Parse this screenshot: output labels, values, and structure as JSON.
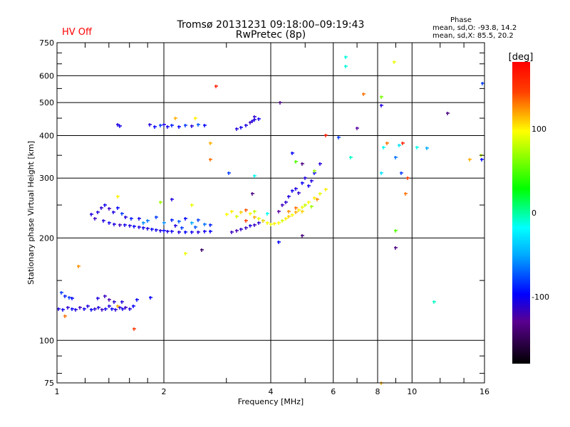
{
  "header": {
    "title": "Tromsø 20131231 09:18:00–09:19:43",
    "subtitle": "RwPretec (8p)",
    "hv_status": "HV Off",
    "phase_title": "Phase",
    "phase_o": "mean, sd,O: -93.8, 14.2",
    "phase_x": "mean, sd,X:  85.5, 20.2"
  },
  "colors": {
    "hv_status": "#ff0000",
    "grid": "#000000"
  },
  "chart_data": {
    "type": "scatter",
    "title": "Tromsø 20131231 09:18:00–09:19:43",
    "xlabel": "Frequency [MHz]",
    "ylabel": "Stationary phase Virtual Height [km]",
    "xscale": "log",
    "yscale": "log",
    "xlim": [
      1,
      16
    ],
    "ylim": [
      75,
      750
    ],
    "xticks": [
      1,
      2,
      4,
      6,
      8,
      10,
      16
    ],
    "yticks": [
      75,
      100,
      200,
      300,
      400,
      500,
      600,
      750
    ],
    "grid": true,
    "colorbar": {
      "label": "[deg]",
      "range": [
        -180,
        180
      ],
      "ticks": [
        100,
        0,
        -100
      ]
    },
    "point_format": [
      "freq_MHz",
      "height_km",
      "phase_deg"
    ],
    "points": [
      [
        1.01,
        124,
        -110
      ],
      [
        1.04,
        123,
        -105
      ],
      [
        1.07,
        125,
        -115
      ],
      [
        1.1,
        124,
        -100
      ],
      [
        1.13,
        123,
        -110
      ],
      [
        1.16,
        125,
        -120
      ],
      [
        1.19,
        124,
        -105
      ],
      [
        1.22,
        126,
        -110
      ],
      [
        1.25,
        123,
        -100
      ],
      [
        1.28,
        124,
        -115
      ],
      [
        1.31,
        125,
        -110
      ],
      [
        1.34,
        123,
        -120
      ],
      [
        1.37,
        124,
        -105
      ],
      [
        1.4,
        126,
        -110
      ],
      [
        1.43,
        124,
        -100
      ],
      [
        1.46,
        123,
        -115
      ],
      [
        1.5,
        125,
        -110
      ],
      [
        1.53,
        124,
        -105
      ],
      [
        1.56,
        125,
        -120
      ],
      [
        1.6,
        124,
        -110
      ],
      [
        1.64,
        126,
        -100
      ],
      [
        1.03,
        138,
        -90
      ],
      [
        1.05,
        135,
        -95
      ],
      [
        1.08,
        134,
        -90
      ],
      [
        1.1,
        133,
        -100
      ],
      [
        1.3,
        133,
        -110
      ],
      [
        1.36,
        135,
        -120
      ],
      [
        1.4,
        132,
        -125
      ],
      [
        1.45,
        130,
        -115
      ],
      [
        1.52,
        130,
        -110
      ],
      [
        1.68,
        132,
        -100
      ],
      [
        1.83,
        134,
        -100
      ],
      [
        1.15,
        165,
        130
      ],
      [
        1.65,
        108,
        160
      ],
      [
        1.48,
        126,
        120
      ],
      [
        1.05,
        118,
        140
      ],
      [
        1.35,
        225,
        -110
      ],
      [
        1.4,
        222,
        -105
      ],
      [
        1.45,
        220,
        -110
      ],
      [
        1.5,
        219,
        -120
      ],
      [
        1.55,
        218,
        -105
      ],
      [
        1.6,
        217,
        -110
      ],
      [
        1.65,
        216,
        -100
      ],
      [
        1.7,
        215,
        -110
      ],
      [
        1.75,
        214,
        -105
      ],
      [
        1.8,
        213,
        -110
      ],
      [
        1.85,
        212,
        -100
      ],
      [
        1.9,
        211,
        -105
      ],
      [
        1.95,
        210,
        -110
      ],
      [
        2.0,
        210,
        -100
      ],
      [
        2.05,
        209,
        -110
      ],
      [
        2.1,
        209,
        -105
      ],
      [
        2.2,
        208,
        -110
      ],
      [
        2.3,
        208,
        -100
      ],
      [
        2.4,
        208,
        -105
      ],
      [
        2.5,
        208,
        -110
      ],
      [
        2.6,
        209,
        -105
      ],
      [
        2.7,
        209,
        -100
      ],
      [
        1.3,
        238,
        -110
      ],
      [
        1.33,
        245,
        -115
      ],
      [
        1.36,
        250,
        -105
      ],
      [
        1.4,
        244,
        -120
      ],
      [
        1.44,
        238,
        -110
      ],
      [
        1.48,
        245,
        -100
      ],
      [
        1.52,
        236,
        -90
      ],
      [
        1.56,
        230,
        -110
      ],
      [
        1.62,
        228,
        -95
      ],
      [
        1.7,
        228,
        -105
      ],
      [
        1.8,
        225,
        -80
      ],
      [
        1.9,
        230,
        -90
      ],
      [
        2.0,
        222,
        -75
      ],
      [
        2.1,
        226,
        -95
      ],
      [
        2.2,
        224,
        -85
      ],
      [
        2.3,
        228,
        -100
      ],
      [
        2.4,
        222,
        -70
      ],
      [
        2.5,
        226,
        -90
      ],
      [
        2.6,
        220,
        -80
      ],
      [
        2.7,
        218,
        -95
      ],
      [
        1.25,
        235,
        -110
      ],
      [
        1.28,
        228,
        -120
      ],
      [
        2.25,
        214,
        -90
      ],
      [
        2.45,
        215,
        -85
      ],
      [
        1.75,
        222,
        -75
      ],
      [
        2.15,
        217,
        -110
      ],
      [
        1.48,
        430,
        -110
      ],
      [
        1.5,
        427,
        -105
      ],
      [
        1.82,
        430,
        -110
      ],
      [
        1.88,
        425,
        -100
      ],
      [
        1.95,
        428,
        -90
      ],
      [
        2.0,
        432,
        -110
      ],
      [
        2.05,
        425,
        -105
      ],
      [
        2.1,
        428,
        -95
      ],
      [
        2.2,
        424,
        -100
      ],
      [
        2.3,
        428,
        -90
      ],
      [
        2.4,
        426,
        -110
      ],
      [
        2.5,
        430,
        -85
      ],
      [
        2.6,
        428,
        -100
      ],
      [
        3.2,
        418,
        -110
      ],
      [
        3.3,
        422,
        -105
      ],
      [
        3.4,
        428,
        -110
      ],
      [
        3.5,
        438,
        -120
      ],
      [
        3.6,
        445,
        -110
      ],
      [
        3.7,
        448,
        -105
      ],
      [
        3.6,
        455,
        -115
      ],
      [
        3.55,
        442,
        -110
      ],
      [
        3.1,
        208,
        -120
      ],
      [
        3.2,
        210,
        -125
      ],
      [
        3.3,
        212,
        -115
      ],
      [
        3.4,
        214,
        -120
      ],
      [
        3.5,
        217,
        -110
      ],
      [
        3.6,
        219,
        -120
      ],
      [
        3.7,
        222,
        -115
      ],
      [
        3.8,
        225,
        -105
      ],
      [
        3.0,
        235,
        95
      ],
      [
        3.1,
        240,
        100
      ],
      [
        3.2,
        232,
        85
      ],
      [
        3.3,
        238,
        110
      ],
      [
        3.4,
        242,
        150
      ],
      [
        3.5,
        236,
        95
      ],
      [
        3.6,
        230,
        120
      ],
      [
        3.7,
        228,
        90
      ],
      [
        3.8,
        225,
        100
      ],
      [
        3.9,
        222,
        95
      ],
      [
        4.0,
        220,
        90
      ],
      [
        4.1,
        221,
        100
      ],
      [
        4.2,
        222,
        95
      ],
      [
        4.3,
        225,
        85
      ],
      [
        4.4,
        228,
        100
      ],
      [
        4.5,
        231,
        110
      ],
      [
        4.6,
        234,
        95
      ],
      [
        4.7,
        238,
        120
      ],
      [
        4.8,
        242,
        100
      ],
      [
        4.9,
        246,
        90
      ],
      [
        5.0,
        250,
        80
      ],
      [
        5.1,
        255,
        95
      ],
      [
        5.3,
        262,
        100
      ],
      [
        5.5,
        270,
        90
      ],
      [
        5.7,
        278,
        100
      ],
      [
        4.5,
        240,
        130
      ],
      [
        4.7,
        245,
        140
      ],
      [
        4.9,
        240,
        110
      ],
      [
        5.2,
        248,
        70
      ],
      [
        5.4,
        260,
        130
      ],
      [
        3.4,
        225,
        160
      ],
      [
        3.6,
        240,
        80
      ],
      [
        3.9,
        236,
        -50
      ],
      [
        4.5,
        265,
        -110
      ],
      [
        4.6,
        275,
        -105
      ],
      [
        4.7,
        280,
        -110
      ],
      [
        4.8,
        272,
        -115
      ],
      [
        4.9,
        290,
        -100
      ],
      [
        5.0,
        300,
        -110
      ],
      [
        5.1,
        285,
        -105
      ],
      [
        5.2,
        295,
        -110
      ],
      [
        4.4,
        255,
        -115
      ],
      [
        4.3,
        250,
        -120
      ],
      [
        5.3,
        310,
        -100
      ],
      [
        5.5,
        330,
        -110
      ],
      [
        4.2,
        240,
        -130
      ],
      [
        6.5,
        680,
        -40
      ],
      [
        6.5,
        640,
        -40
      ],
      [
        7.3,
        530,
        140
      ],
      [
        8.2,
        520,
        60
      ],
      [
        8.2,
        490,
        -110
      ],
      [
        8.9,
        660,
        90
      ],
      [
        6.7,
        345,
        -30
      ],
      [
        7.0,
        420,
        -130
      ],
      [
        6.2,
        395,
        -90
      ],
      [
        8.5,
        380,
        140
      ],
      [
        8.3,
        370,
        -50
      ],
      [
        9.2,
        375,
        -60
      ],
      [
        9.4,
        380,
        170
      ],
      [
        10.3,
        370,
        -50
      ],
      [
        11.0,
        368,
        -70
      ],
      [
        12.6,
        465,
        -140
      ],
      [
        15.8,
        570,
        -90
      ],
      [
        15.6,
        350,
        80
      ],
      [
        15.7,
        340,
        -100
      ],
      [
        14.5,
        340,
        120
      ],
      [
        9.0,
        345,
        -80
      ],
      [
        9.3,
        310,
        -90
      ],
      [
        9.7,
        300,
        160
      ],
      [
        9.6,
        270,
        140
      ],
      [
        9.0,
        210,
        50
      ],
      [
        9.0,
        187,
        -140
      ],
      [
        8.2,
        310,
        -60
      ],
      [
        11.5,
        130,
        -30
      ],
      [
        2.8,
        560,
        170
      ],
      [
        5.7,
        400,
        170
      ],
      [
        4.25,
        500,
        -140
      ],
      [
        4.6,
        355,
        -100
      ],
      [
        4.7,
        335,
        50
      ],
      [
        4.9,
        330,
        -140
      ],
      [
        5.3,
        315,
        70
      ],
      [
        3.6,
        305,
        -50
      ],
      [
        3.05,
        310,
        -90
      ],
      [
        2.1,
        260,
        -110
      ],
      [
        2.4,
        250,
        90
      ],
      [
        1.48,
        265,
        100
      ],
      [
        1.95,
        255,
        70
      ],
      [
        2.55,
        185,
        -150
      ],
      [
        2.3,
        180,
        90
      ],
      [
        4.2,
        195,
        -100
      ],
      [
        4.9,
        203,
        -140
      ],
      [
        8.2,
        75,
        120
      ],
      [
        2.7,
        380,
        120
      ],
      [
        2.7,
        340,
        140
      ],
      [
        2.15,
        450,
        120
      ],
      [
        2.45,
        450,
        100
      ],
      [
        3.55,
        270,
        -140
      ]
    ]
  }
}
